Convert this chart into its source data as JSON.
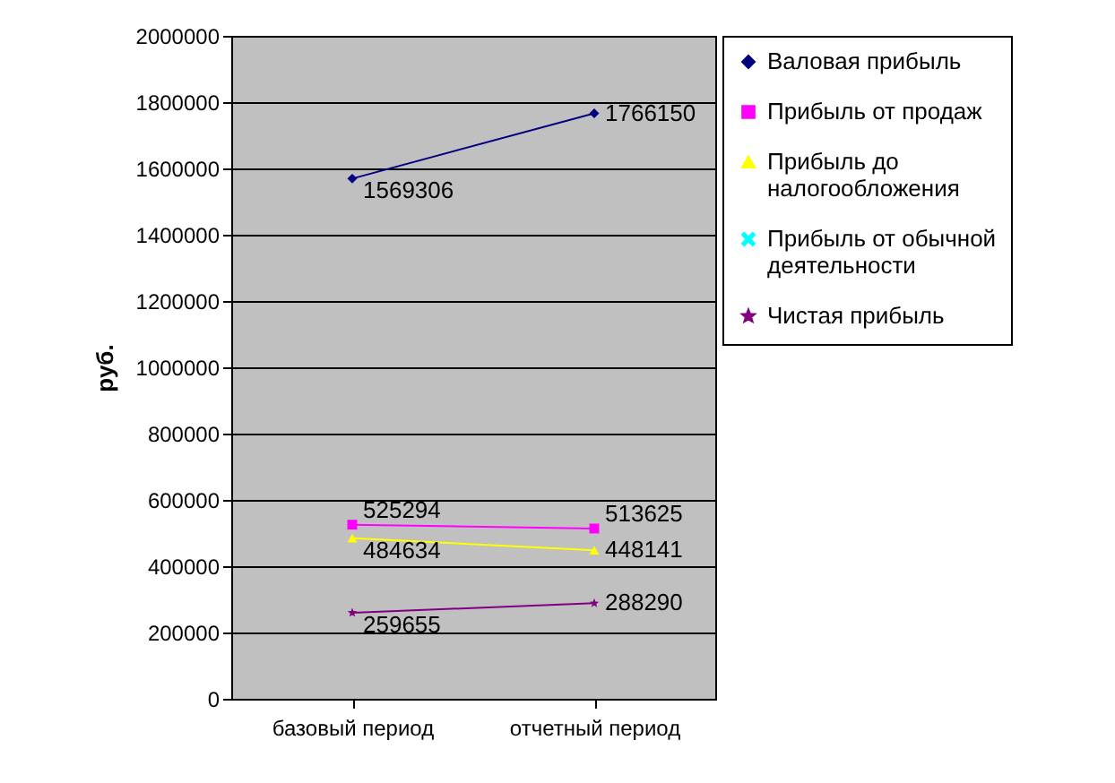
{
  "chart_data": {
    "type": "line",
    "ylabel": "руб.",
    "categories": [
      "базовый период",
      "отчетный период"
    ],
    "series": [
      {
        "name": "Валовая прибыль",
        "color": "#000080",
        "marker": "diamond",
        "values": [
          1569306,
          1766150
        ]
      },
      {
        "name": "Прибыль от продаж",
        "color": "#ff00ff",
        "marker": "square",
        "values": [
          525294,
          513625
        ]
      },
      {
        "name": "Прибыль до налогообложения",
        "color": "#ffff00",
        "marker": "triangle",
        "values": [
          484634,
          448141
        ]
      },
      {
        "name": "Прибыль от обычной деятельности",
        "color": "#00ffff",
        "marker": "cross",
        "values": [
          null,
          null
        ]
      },
      {
        "name": "Чистая прибыль",
        "color": "#800080",
        "marker": "star",
        "values": [
          259655,
          288290
        ]
      }
    ],
    "ylim": [
      0,
      2000000
    ],
    "yticks": [
      0,
      200000,
      400000,
      600000,
      800000,
      1000000,
      1200000,
      1400000,
      1600000,
      1800000,
      2000000
    ],
    "grid": "y",
    "legend": "right",
    "data_labels": true
  }
}
